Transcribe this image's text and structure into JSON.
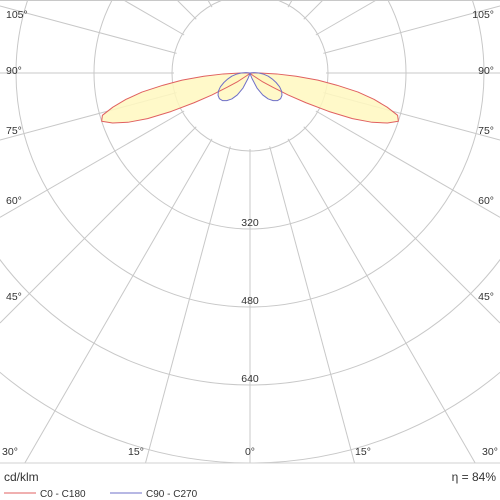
{
  "colors": {
    "grid": "#c8c8c8",
    "frame": "#c8c8c8",
    "fill": "#fff8c0",
    "series_c0": "#e06060",
    "series_c90": "#6f70c8",
    "text": "#333333"
  },
  "chart_data": {
    "type": "polar",
    "unit_label": "cd/klm",
    "efficiency_label": "η = 84%",
    "angle_ticks": [
      {
        "angle": 105,
        "text": "105°"
      },
      {
        "angle": 90,
        "text": "90°"
      },
      {
        "angle": 75,
        "text": "75°"
      },
      {
        "angle": 60,
        "text": "60°"
      },
      {
        "angle": 45,
        "text": "45°"
      },
      {
        "angle": 30,
        "text": "30°"
      },
      {
        "angle": 15,
        "text": "15°"
      },
      {
        "angle": 0,
        "text": "0°"
      }
    ],
    "ring_values": [
      160,
      320,
      480,
      640
    ],
    "ring_labels": [
      "320",
      "480",
      "640"
    ],
    "rmax": 800,
    "series": [
      {
        "name": "C0 - C180",
        "color": "#e06060",
        "points": [
          [
            0,
            0
          ],
          [
            10,
            0
          ],
          [
            20,
            0
          ],
          [
            30,
            0
          ],
          [
            40,
            1
          ],
          [
            45,
            3
          ],
          [
            50,
            8
          ],
          [
            55,
            30
          ],
          [
            58,
            55
          ],
          [
            60,
            90
          ],
          [
            62,
            130
          ],
          [
            64,
            180
          ],
          [
            66,
            230
          ],
          [
            68,
            270
          ],
          [
            70,
            300
          ],
          [
            72,
            320
          ],
          [
            74,
            315
          ],
          [
            76,
            290
          ],
          [
            78,
            260
          ],
          [
            80,
            225
          ],
          [
            82,
            180
          ],
          [
            84,
            140
          ],
          [
            86,
            95
          ],
          [
            88,
            55
          ],
          [
            90,
            20
          ],
          [
            92,
            5
          ],
          [
            95,
            0
          ]
        ]
      },
      {
        "name": "C90 - C270",
        "color": "#6f70c8",
        "points": [
          [
            0,
            0
          ],
          [
            10,
            0
          ],
          [
            15,
            3
          ],
          [
            20,
            12
          ],
          [
            25,
            34
          ],
          [
            30,
            52
          ],
          [
            35,
            65
          ],
          [
            40,
            74
          ],
          [
            45,
            80
          ],
          [
            50,
            82
          ],
          [
            55,
            80
          ],
          [
            60,
            75
          ],
          [
            65,
            67
          ],
          [
            70,
            57
          ],
          [
            75,
            47
          ],
          [
            80,
            38
          ],
          [
            85,
            28
          ],
          [
            90,
            18
          ],
          [
            95,
            8
          ],
          [
            100,
            0
          ]
        ]
      }
    ],
    "grid": true,
    "legend_position": "bottom"
  }
}
